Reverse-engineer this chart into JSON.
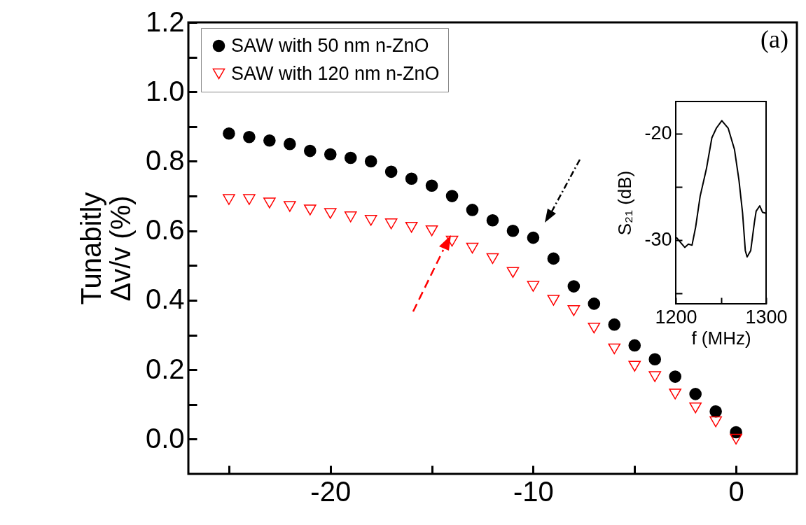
{
  "chart_data": [
    {
      "type": "scatter",
      "ylabel": "Tunabitly\nΔv/v (%)",
      "legend": "top left",
      "annotations": [
        "(a)"
      ],
      "x": [
        -25,
        -24,
        -23,
        -22,
        -21,
        -20,
        -19,
        -18,
        -17,
        -16,
        -15,
        -14,
        -13,
        -12,
        -11,
        -10,
        -9,
        -8,
        -7,
        -6,
        -5,
        -4,
        -3,
        -2,
        -1,
        0
      ],
      "xlim": [
        -27,
        3
      ],
      "xticks": [
        {
          "value": -25,
          "label": null
        },
        -20,
        {
          "value": -15,
          "label": null
        },
        -10,
        {
          "value": -5,
          "label": null
        },
        0
      ],
      "ylim": [
        -0.1,
        1.2
      ],
      "yticks": [
        {
          "value": 0,
          "label": "0.0"
        },
        {
          "value": 0.1,
          "label": null
        },
        {
          "value": 0.2,
          "label": "0.2"
        },
        {
          "value": 0.3,
          "label": null
        },
        {
          "value": 0.4,
          "label": "0.4"
        },
        {
          "value": 0.5,
          "label": null
        },
        {
          "value": 0.6,
          "label": "0.6"
        },
        {
          "value": 0.7,
          "label": null
        },
        {
          "value": 0.8,
          "label": "0.8"
        },
        {
          "value": 0.9,
          "label": null
        },
        {
          "value": 1.0,
          "label": "1.0"
        },
        {
          "value": 1.1,
          "label": null
        },
        {
          "value": 1.2,
          "label": "1.2"
        }
      ],
      "series": [
        {
          "name": "SAW with 50 nm n-ZnO",
          "color": "#000000",
          "marker": "circle",
          "values": [
            0.88,
            0.87,
            0.86,
            0.85,
            0.83,
            0.82,
            0.81,
            0.8,
            0.77,
            0.75,
            0.73,
            0.7,
            0.66,
            0.63,
            0.6,
            0.58,
            0.52,
            0.44,
            0.39,
            0.33,
            0.27,
            0.23,
            0.18,
            0.13,
            0.08,
            0.02
          ]
        },
        {
          "name": "SAW with 120 nm n-ZnO",
          "color": "#ff0000",
          "marker": "triangle",
          "values": [
            0.69,
            0.69,
            0.68,
            0.67,
            0.66,
            0.65,
            0.64,
            0.63,
            0.62,
            0.61,
            0.6,
            0.57,
            0.55,
            0.52,
            0.48,
            0.44,
            0.4,
            0.37,
            0.32,
            0.26,
            0.21,
            0.18,
            0.13,
            0.09,
            0.05,
            0.0
          ]
        }
      ]
    },
    {
      "type": "line",
      "xlabel": "f (MHz)",
      "ylabel": "S₂₁ (dB)",
      "xlim": [
        1200,
        1300
      ],
      "xticks": [
        1200,
        {
          "value": 1250,
          "label": null
        },
        1300
      ],
      "ylim": [
        -36,
        -17
      ],
      "yticks": [
        -20,
        {
          "value": -25,
          "label": null
        },
        -30,
        {
          "value": -35,
          "label": null
        }
      ],
      "series": [
        {
          "color": "#000000",
          "x": [
            1201,
            1205,
            1210,
            1214,
            1218,
            1222,
            1227,
            1234,
            1240,
            1245,
            1251,
            1258,
            1265,
            1270,
            1274,
            1277,
            1279,
            1283,
            1287,
            1289,
            1293,
            1296,
            1300
          ],
          "values": [
            -29.8,
            -30.2,
            -30.7,
            -30.4,
            -30.5,
            -28.8,
            -25.9,
            -23.3,
            -20.4,
            -19.5,
            -18.8,
            -19.5,
            -21.5,
            -24.4,
            -27.5,
            -31.0,
            -31.6,
            -31.0,
            -28.4,
            -27.3,
            -26.8,
            -27.4,
            -27.5
          ]
        }
      ]
    }
  ]
}
